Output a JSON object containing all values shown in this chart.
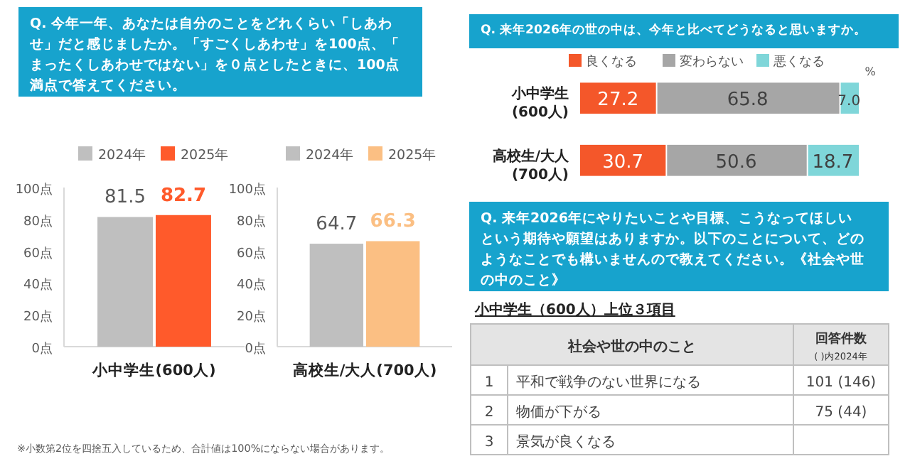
{
  "chart_data": [
    {
      "type": "bar",
      "title": "Q. 今年一年、あなたは自分のことをどれくらい「しあわせ」だと感じましたか。「すごくしあわせ」を100点、「まったくしあわせではない」を０点としたときに、100点満点で答えてください。",
      "categories": [
        "小中学生(600人)"
      ],
      "series": [
        {
          "name": "2024年",
          "color": "#bfbfbf",
          "values": [
            81.5
          ]
        },
        {
          "name": "2025年",
          "color": "#ff5a2b",
          "values": [
            82.7
          ]
        }
      ],
      "ylim": [
        0,
        100
      ],
      "yticks": [
        {
          "value": 0,
          "label": "0点"
        },
        {
          "value": 20,
          "label": "20点"
        },
        {
          "value": 40,
          "label": "40点"
        },
        {
          "value": 60,
          "label": "60点"
        },
        {
          "value": 80,
          "label": "80点"
        },
        {
          "value": 100,
          "label": "100点"
        }
      ],
      "data_labels": true,
      "legend": "top",
      "grid": false
    },
    {
      "type": "bar",
      "categories": [
        "高校生/大人(700人)"
      ],
      "series": [
        {
          "name": "2024年",
          "color": "#bfbfbf",
          "values": [
            64.7
          ]
        },
        {
          "name": "2025年",
          "color": "#fbbf83",
          "values": [
            66.3
          ]
        }
      ],
      "ylim": [
        0,
        100
      ],
      "yticks": [
        {
          "value": 0,
          "label": "0点"
        },
        {
          "value": 20,
          "label": "20点"
        },
        {
          "value": 40,
          "label": "40点"
        },
        {
          "value": 60,
          "label": "60点"
        },
        {
          "value": 80,
          "label": "80点"
        },
        {
          "value": 100,
          "label": "100点"
        }
      ],
      "data_labels": true,
      "legend": "top",
      "grid": false,
      "annotations": [
        "※小数第2位を四捨五入しているため、合計値は100%にならない場合があります。"
      ]
    },
    {
      "type": "bar",
      "orientation": "horizontal",
      "stacked": true,
      "title": "Q. 来年2026年の世の中は、今年と比べてどうなると思いますか。",
      "categories": [
        "小中学生\n(600人)",
        "高校生/大人\n(700人)"
      ],
      "series": [
        {
          "name": "良くなる",
          "color": "#f4572a",
          "values": [
            27.2,
            30.7
          ],
          "value_labels": [
            "27.2",
            "30.7"
          ]
        },
        {
          "name": "変わらない",
          "color": "#a6a6a6",
          "values": [
            65.8,
            50.6
          ],
          "value_labels": [
            "65.8",
            "50.6"
          ]
        },
        {
          "name": "悪くなる",
          "color": "#7fd6d9",
          "values": [
            7.0,
            18.7
          ],
          "value_labels": [
            "7.0",
            "18.7"
          ]
        }
      ],
      "legend": "top",
      "xlabel": "%"
    },
    {
      "type": "other",
      "title": "Q. 来年2026年にやりたいことや目標、こうなってほしいという期待や願望はありますか。以下のことについて、どのようなことでも構いませんので教えてください。《社会や世の中のこと》",
      "subtitle": "小中学生（600人）上位３項目",
      "xlabel": "社会や世の中のこと",
      "ylabel": "回答件数",
      "annotations": [
        "( )内2024年",
        "1",
        "2",
        "3"
      ],
      "categories": [
        "平和で戦争のない世界になる",
        "物価が下がる",
        "景気が良くなる"
      ],
      "value_labels": [
        "101 (146)",
        "75 (44)",
        null
      ]
    }
  ]
}
